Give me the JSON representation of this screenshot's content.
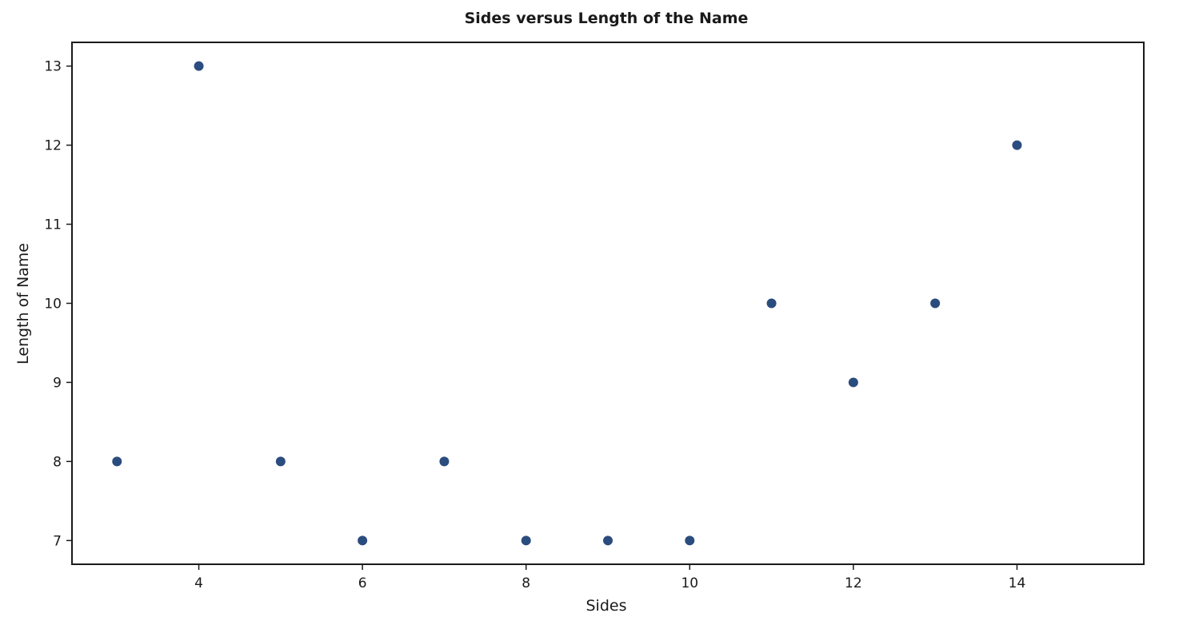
{
  "chart_data": {
    "type": "scatter",
    "title": "Sides versus Length of the Name",
    "xlabel": "Sides",
    "ylabel": "Length of Name",
    "x": [
      3,
      4,
      5,
      6,
      7,
      8,
      9,
      10,
      11,
      12,
      13,
      14
    ],
    "y": [
      8,
      13,
      8,
      7,
      8,
      7,
      7,
      7,
      10,
      9,
      10,
      12
    ],
    "xlim": [
      2.45,
      15.55
    ],
    "ylim": [
      6.7,
      13.3
    ],
    "xticks": [
      4,
      6,
      8,
      10,
      12,
      14
    ],
    "yticks": [
      7,
      8,
      9,
      10,
      11,
      12,
      13
    ],
    "grid": false,
    "point_color": "#2b4c7e"
  }
}
